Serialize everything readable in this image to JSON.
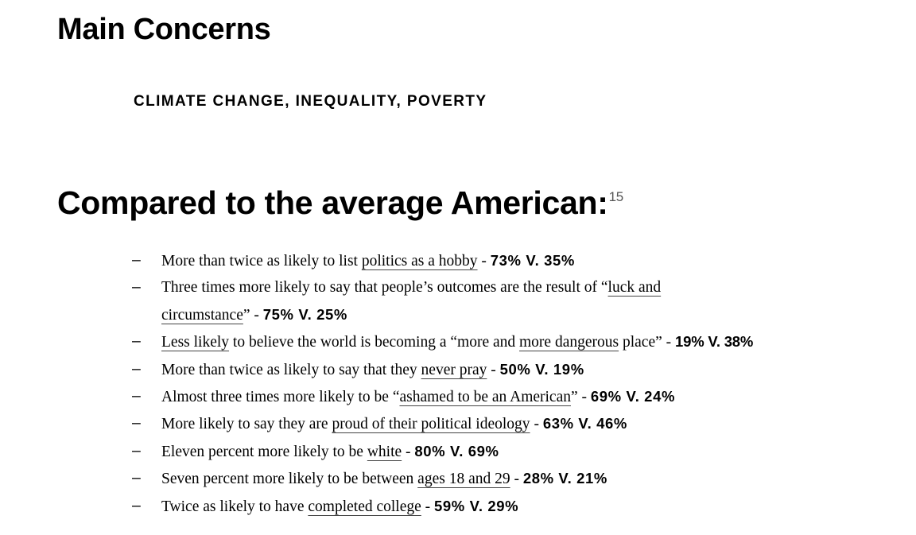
{
  "header": {
    "main_title": "Main Concerns",
    "concerns": "CLIMATE CHANGE, INEQUALITY, POVERTY"
  },
  "section": {
    "title": "Compared to the average American:",
    "footnote": "15"
  },
  "bullet": "–",
  "findings": [
    {
      "pre": "More than twice as likely to list ",
      "link": "politics as a hobby",
      "post": " - ",
      "stat": "73% V. 35%"
    },
    {
      "pre": "Three times more likely to say that people’s outcomes are the result of “",
      "link": "luck and",
      "link_cont": "circumstance",
      "post": "” - ",
      "stat": "75% V. 25%"
    },
    {
      "link": "Less likely",
      "mid": " to believe the world is becoming a “more and ",
      "link2": "more dangerous",
      "post": " place” - ",
      "stat": "19% V. 38%"
    },
    {
      "pre": "More than twice as likely to say that they ",
      "link": "never pray",
      "post": " - ",
      "stat": "50% V. 19%"
    },
    {
      "pre": "Almost three times more likely to be “",
      "link": "ashamed to be an American",
      "post": "” - ",
      "stat": "69% V. 24%"
    },
    {
      "pre": "More likely to say they are ",
      "link": "proud of their political ideology",
      "post": " - ",
      "stat": "63% V. 46%"
    },
    {
      "pre": "Eleven percent more likely to be ",
      "link": "white",
      "post": " - ",
      "stat": "80% V. 69%"
    },
    {
      "pre": "Seven percent more likely to be between ",
      "link": "ages 18 and 29",
      "post": " - ",
      "stat": "28% V. 21%"
    },
    {
      "pre": "Twice as likely to have ",
      "link": "completed college",
      "post": " - ",
      "stat": "59% V. 29%"
    }
  ]
}
